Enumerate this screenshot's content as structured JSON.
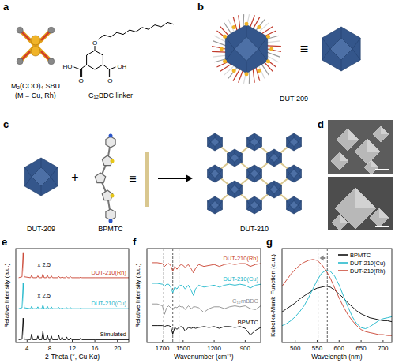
{
  "diagram": {
    "a": {
      "letter": "a",
      "sbu_label": "M₂(COO)₄ SBU",
      "sbu_metal": "(M = Cu, Rh)",
      "linker_label": "C₁₂BDC linker",
      "linker_atoms": [
        "O",
        "HO",
        "O",
        "O",
        "OH"
      ]
    },
    "b": {
      "letter": "b",
      "equiv": "≡",
      "label": "DUT-209"
    },
    "c": {
      "letter": "c",
      "plus": "+",
      "equiv": "≡",
      "labels": [
        "DUT-209",
        "BPMTC",
        "DUT-210"
      ]
    },
    "d": {
      "letter": "d"
    }
  },
  "chart_data": [
    {
      "type": "line",
      "panel": "e",
      "xlabel": "2-Theta (°, Cu Kα)",
      "ylabel": "Relative Intensity (a.u.)",
      "x": [
        2.5,
        3.1,
        3.3,
        3.5,
        4.6,
        4.8,
        5.0,
        5.7,
        5.9,
        6.1,
        6.6,
        6.8,
        7.0,
        7.4,
        7.6,
        7.8,
        8.1,
        8.3,
        8.5,
        9.4,
        9.6,
        9.8,
        10.0,
        10.2,
        10.4,
        10.8,
        11.0,
        11.2,
        11.5,
        11.7,
        11.9,
        13.3,
        13.5,
        13.7,
        16,
        22
      ],
      "xlim": [
        2,
        22
      ],
      "xticks": [
        4,
        8,
        12,
        16,
        20
      ],
      "ylim": [
        0,
        10
      ],
      "tick_labels": "x",
      "legend": "inline",
      "annotations": [
        "x 2.5",
        "x 2.5"
      ],
      "series": [
        {
          "name": "Simulated",
          "color": "#000000",
          "values": [
            0.3,
            0.35,
            2.6,
            0.35,
            0.3,
            0.9,
            0.3,
            0.3,
            0.7,
            0.3,
            0.3,
            1.2,
            0.3,
            0.3,
            0.8,
            0.3,
            0.3,
            0.7,
            0.3,
            0.3,
            0.8,
            0.3,
            0.3,
            0.6,
            0.3,
            0.3,
            0.6,
            0.3,
            0.3,
            0.5,
            0.3,
            0.3,
            0.5,
            0.3,
            0.3,
            0.3
          ]
        },
        {
          "name": "DUT-210(Cu)",
          "color": "#17b4c8",
          "values": [
            3.6,
            3.7,
            6.3,
            3.7,
            3.6,
            3.85,
            3.6,
            3.6,
            3.8,
            3.6,
            3.6,
            4.0,
            3.6,
            3.6,
            3.85,
            3.6,
            3.6,
            3.8,
            3.6,
            3.6,
            3.75,
            3.6,
            3.6,
            3.7,
            3.6,
            3.6,
            3.7,
            3.6,
            3.6,
            3.7,
            3.6,
            3.6,
            3.65,
            3.6,
            3.6,
            3.6
          ]
        },
        {
          "name": "DUT-210(Rh)",
          "color": "#c8402e",
          "values": [
            6.9,
            7.0,
            9.6,
            7.0,
            6.9,
            7.15,
            6.9,
            6.9,
            7.1,
            6.9,
            6.9,
            7.3,
            6.9,
            6.9,
            7.15,
            6.9,
            6.9,
            7.1,
            6.9,
            6.9,
            7.05,
            6.9,
            6.9,
            7.0,
            6.9,
            6.9,
            7.0,
            6.9,
            6.9,
            7.0,
            6.9,
            6.9,
            6.95,
            6.9,
            6.9,
            6.9
          ]
        }
      ]
    },
    {
      "type": "line",
      "panel": "f",
      "xlabel": "Wavenumber (cm⁻¹)",
      "ylabel": "Relative Intensity (a.u.)",
      "x": [
        1800,
        1750,
        1700,
        1680,
        1660,
        1640,
        1620,
        1600,
        1580,
        1560,
        1540,
        1520,
        1500,
        1480,
        1450,
        1420,
        1400,
        1380,
        1350,
        1300,
        1250,
        1200,
        1150,
        1100,
        1050,
        1000,
        950,
        900,
        850,
        800,
        750
      ],
      "xlim": [
        1850,
        750
      ],
      "xticks": [
        1700,
        1500,
        1200,
        900
      ],
      "ylim": [
        0.5,
        10.5
      ],
      "tick_labels": "x",
      "legend": "inline",
      "vlines": [
        1690,
        1600,
        1540
      ],
      "series": [
        {
          "name": "BPMTC",
          "color": "#000000",
          "values": [
            2.3,
            2.3,
            2.3,
            2.2,
            2.3,
            2.3,
            2.2,
            1.4,
            2.1,
            1.9,
            2.1,
            2.2,
            2.1,
            1.7,
            2.1,
            2.0,
            2.1,
            2.0,
            2.1,
            2.2,
            2.1,
            2.2,
            2.0,
            2.2,
            2.2,
            2.1,
            2.2,
            2.0,
            1.3,
            1.8,
            2.1
          ]
        },
        {
          "name": "C₁₂mBDC",
          "color": "#8c8c8c",
          "values": [
            4.6,
            4.6,
            4.4,
            3.5,
            4.2,
            4.4,
            4.2,
            4.0,
            4.3,
            4.2,
            4.4,
            4.3,
            4.3,
            4.0,
            4.4,
            4.1,
            4.3,
            4.3,
            4.2,
            3.7,
            4.1,
            4.3,
            4.3,
            4.1,
            4.3,
            4.4,
            4.3,
            4.4,
            4.1,
            4.0,
            4.4
          ]
        },
        {
          "name": "DUT-210(Cu)",
          "color": "#17b4c8",
          "values": [
            6.8,
            6.8,
            6.7,
            6.5,
            6.7,
            6.7,
            6.4,
            5.8,
            6.4,
            6.2,
            6.5,
            6.6,
            6.5,
            6.2,
            6.6,
            6.0,
            5.5,
            6.2,
            6.6,
            6.4,
            6.5,
            6.6,
            6.4,
            6.6,
            6.7,
            6.6,
            6.7,
            6.6,
            6.3,
            6.6,
            6.7
          ]
        },
        {
          "name": "DUT-210(Rh)",
          "color": "#c8402e",
          "values": [
            9.0,
            9.0,
            8.9,
            8.6,
            8.8,
            8.9,
            8.7,
            8.1,
            8.6,
            8.3,
            8.6,
            8.8,
            8.7,
            8.5,
            8.8,
            8.3,
            7.9,
            8.4,
            8.8,
            8.6,
            8.7,
            8.8,
            8.6,
            8.8,
            8.9,
            8.8,
            8.9,
            8.9,
            8.6,
            8.8,
            8.9
          ]
        }
      ]
    },
    {
      "type": "line",
      "panel": "g",
      "xlabel": "Wavelength (nm)",
      "ylabel": "Kubelka-Munk Function (a.u.)",
      "x": [
        470,
        480,
        490,
        500,
        510,
        520,
        530,
        540,
        550,
        560,
        570,
        580,
        590,
        600,
        610,
        620,
        630,
        640,
        650,
        660,
        670,
        680,
        690,
        700,
        710,
        720
      ],
      "xlim": [
        470,
        720
      ],
      "xticks": [
        500,
        550,
        600,
        650,
        700
      ],
      "ylim": [
        0.05,
        1.0
      ],
      "tick_labels": "x",
      "legend": "upper right",
      "vlines": [
        552,
        573
      ],
      "series": [
        {
          "name": "BPMTC",
          "color": "#000000",
          "values": [
            0.36,
            0.39,
            0.42,
            0.45,
            0.49,
            0.52,
            0.55,
            0.58,
            0.6,
            0.61,
            0.62,
            0.61,
            0.58,
            0.54,
            0.5,
            0.45,
            0.41,
            0.37,
            0.34,
            0.32,
            0.3,
            0.29,
            0.28,
            0.27,
            0.27,
            0.26
          ]
        },
        {
          "name": "DUT-210(Cu)",
          "color": "#17b4c8",
          "values": [
            0.22,
            0.24,
            0.27,
            0.31,
            0.36,
            0.42,
            0.5,
            0.59,
            0.68,
            0.75,
            0.78,
            0.77,
            0.72,
            0.63,
            0.52,
            0.41,
            0.31,
            0.24,
            0.2,
            0.19,
            0.21,
            0.24,
            0.27,
            0.29,
            0.3,
            0.31
          ]
        },
        {
          "name": "DUT-210(Rh)",
          "color": "#c8402e",
          "values": [
            0.62,
            0.68,
            0.74,
            0.79,
            0.83,
            0.86,
            0.88,
            0.89,
            0.88,
            0.84,
            0.78,
            0.7,
            0.6,
            0.5,
            0.41,
            0.33,
            0.27,
            0.22,
            0.18,
            0.16,
            0.15,
            0.14,
            0.13,
            0.13,
            0.12,
            0.12
          ]
        }
      ]
    }
  ]
}
